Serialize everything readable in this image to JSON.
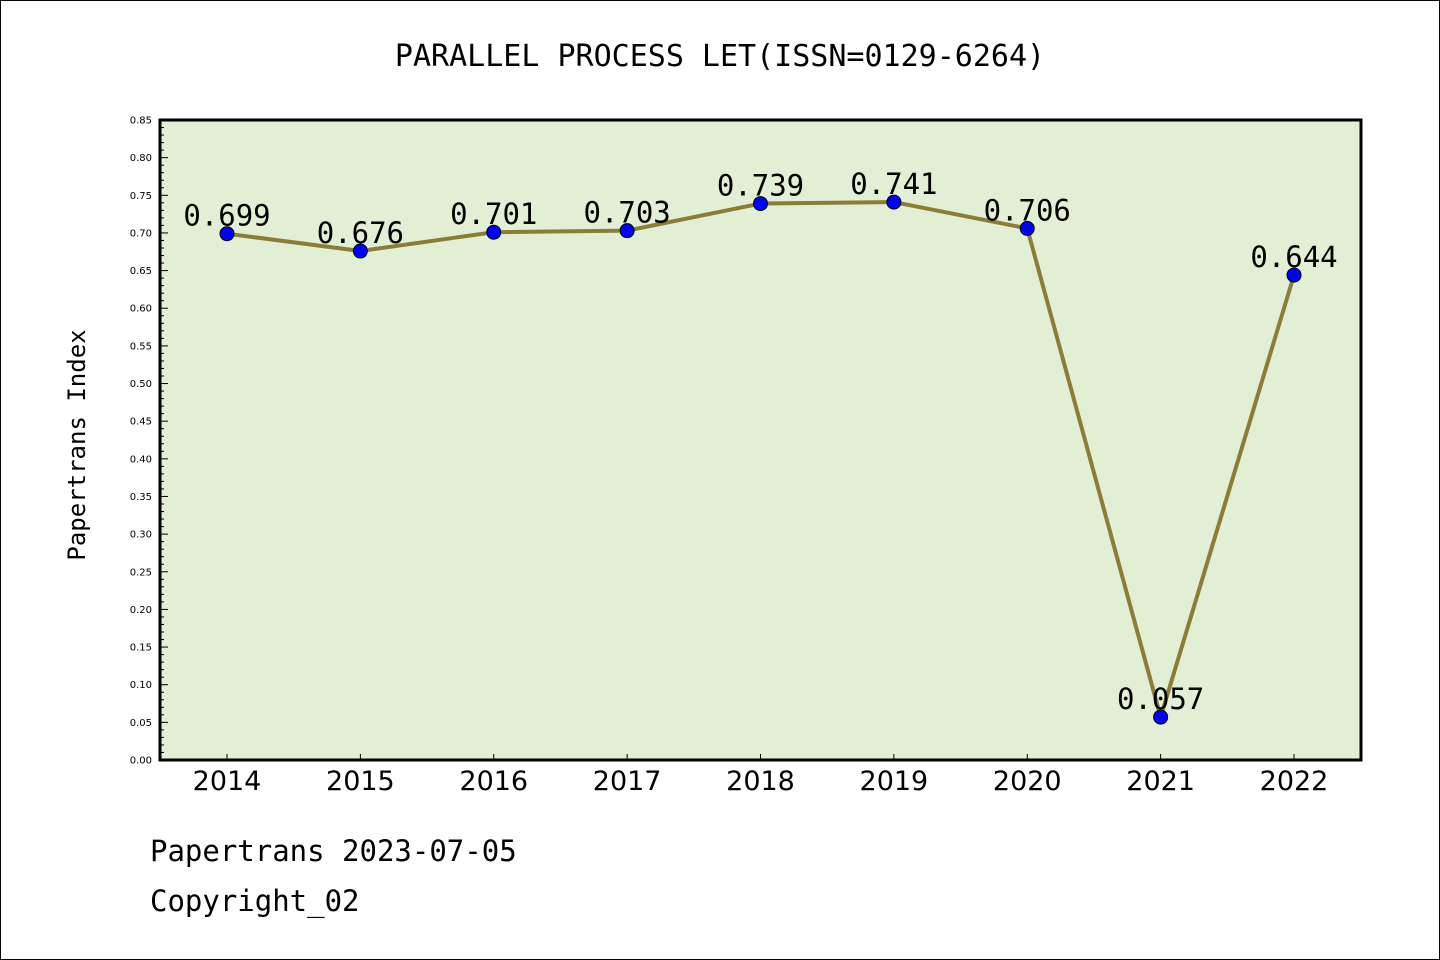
{
  "chart_data": {
    "type": "line",
    "title": "PARALLEL PROCESS LET(ISSN=0129-6264)",
    "ylabel": "Papertrans Index",
    "xlabel": "",
    "categories": [
      "2014",
      "2015",
      "2016",
      "2017",
      "2018",
      "2019",
      "2020",
      "2021",
      "2022"
    ],
    "values": [
      0.699,
      0.676,
      0.701,
      0.703,
      0.739,
      0.741,
      0.706,
      0.057,
      0.644
    ],
    "value_labels": [
      "0.699",
      "0.676",
      "0.701",
      "0.703",
      "0.739",
      "0.741",
      "0.706",
      "0.057",
      "0.644"
    ],
    "ylim": [
      0,
      0.85
    ],
    "yticks": [
      "0.00",
      "0.05",
      "0.10",
      "0.15",
      "0.20",
      "0.25",
      "0.30",
      "0.35",
      "0.40",
      "0.45",
      "0.50",
      "0.55",
      "0.60",
      "0.65",
      "0.70",
      "0.75",
      "0.80",
      "0.85"
    ],
    "grid": false,
    "colors": {
      "plot_background": "#e2efd5",
      "line": "#8b7d35",
      "marker": "#0000ff"
    }
  },
  "footer": {
    "line1": "Papertrans 2023-07-05",
    "line2": "Copyright_02"
  }
}
